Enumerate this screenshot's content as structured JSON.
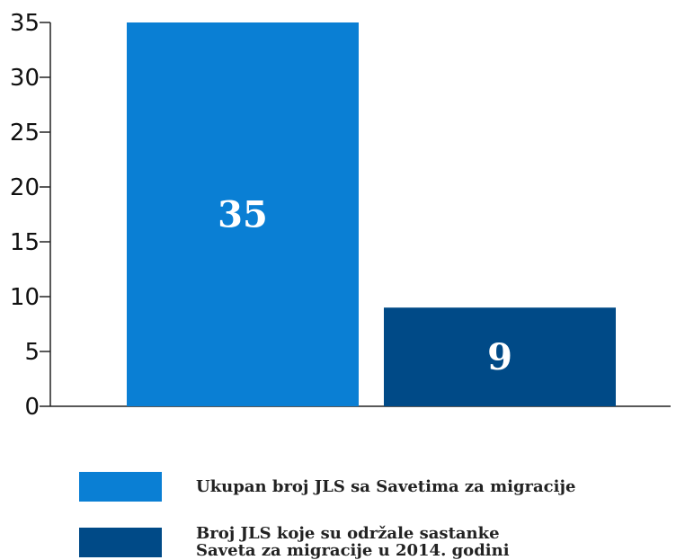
{
  "chart_data": {
    "type": "bar",
    "categories": [
      "Ukupan broj JLS sa Savetima za migracije",
      "Broj JLS koje su održale sastanke\nSaveta za migracije u 2014. godini"
    ],
    "values": [
      35,
      9
    ],
    "ylim": [
      0,
      35
    ],
    "yticks": [
      "0",
      "5",
      "10",
      "15",
      "20",
      "25",
      "30",
      "35"
    ],
    "data_labels": [
      "35",
      "9"
    ],
    "colors": [
      "#0a7fd4",
      "#004a87"
    ],
    "grid": false,
    "legend_position": "bottom-left"
  }
}
